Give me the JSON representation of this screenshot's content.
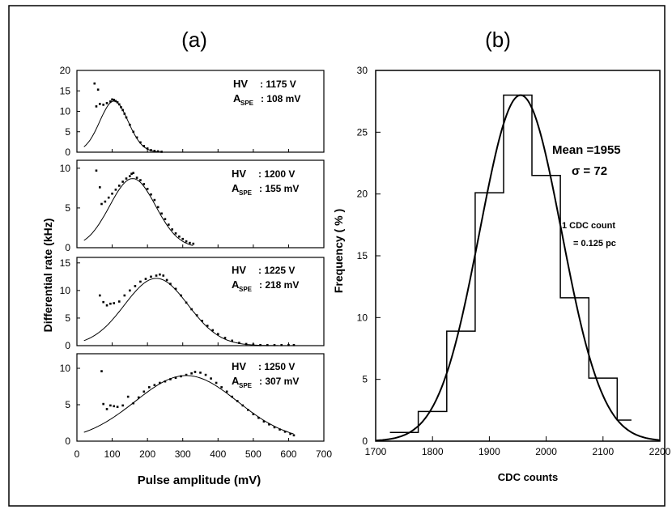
{
  "panel_a_title": "(a)",
  "panel_b_title": "(b)",
  "chart_data": [
    {
      "type": "scatter",
      "panel": "a1",
      "xlim": [
        0,
        700
      ],
      "ylim": [
        0,
        20
      ],
      "yticks": [
        0,
        5,
        10,
        15,
        20
      ],
      "annotation": {
        "hv_label": "HV",
        "hv_value": ": 1175  V",
        "a_label": "A",
        "a_sub": "SPE",
        "a_value": ":   108  mV"
      },
      "points": [
        [
          50,
          16.8
        ],
        [
          60,
          15.3
        ],
        [
          55,
          11.2
        ],
        [
          65,
          11.8
        ],
        [
          75,
          11.6
        ],
        [
          85,
          12.0
        ],
        [
          95,
          12.4
        ],
        [
          100,
          12.9
        ],
        [
          105,
          12.8
        ],
        [
          110,
          12.5
        ],
        [
          115,
          12.2
        ],
        [
          120,
          11.7
        ],
        [
          125,
          11.0
        ],
        [
          130,
          10.3
        ],
        [
          135,
          9.4
        ],
        [
          140,
          8.5
        ],
        [
          150,
          6.7
        ],
        [
          160,
          5.0
        ],
        [
          170,
          3.6
        ],
        [
          180,
          2.4
        ],
        [
          190,
          1.5
        ],
        [
          200,
          0.9
        ],
        [
          210,
          0.5
        ],
        [
          220,
          0.3
        ],
        [
          230,
          0.2
        ],
        [
          240,
          0.1
        ]
      ],
      "fit": {
        "mu": 105,
        "sigma": 40,
        "amp": 12.5,
        "x": [
          20,
          240
        ]
      }
    },
    {
      "type": "scatter",
      "panel": "a2",
      "xlim": [
        0,
        700
      ],
      "ylim": [
        0,
        11
      ],
      "yticks": [
        0,
        5,
        10
      ],
      "annotation": {
        "hv_label": "HV",
        "hv_value": ": 1200  V",
        "a_label": "A",
        "a_sub": "SPE",
        "a_value": ":   155  mV"
      },
      "points": [
        [
          55,
          9.7
        ],
        [
          65,
          7.6
        ],
        [
          70,
          5.5
        ],
        [
          80,
          5.8
        ],
        [
          90,
          6.3
        ],
        [
          100,
          6.8
        ],
        [
          110,
          7.3
        ],
        [
          120,
          7.8
        ],
        [
          130,
          8.3
        ],
        [
          140,
          8.7
        ],
        [
          150,
          9.0
        ],
        [
          155,
          9.3
        ],
        [
          160,
          9.4
        ],
        [
          170,
          8.8
        ],
        [
          180,
          8.5
        ],
        [
          190,
          8.0
        ],
        [
          200,
          7.4
        ],
        [
          210,
          6.7
        ],
        [
          220,
          6.0
        ],
        [
          230,
          5.1
        ],
        [
          240,
          4.3
        ],
        [
          250,
          3.6
        ],
        [
          260,
          2.9
        ],
        [
          270,
          2.3
        ],
        [
          280,
          1.8
        ],
        [
          290,
          1.4
        ],
        [
          300,
          1.1
        ],
        [
          310,
          0.8
        ],
        [
          320,
          0.6
        ],
        [
          330,
          0.5
        ]
      ],
      "fit": {
        "mu": 158,
        "sigma": 65,
        "amp": 8.7,
        "x": [
          20,
          330
        ]
      }
    },
    {
      "type": "scatter",
      "panel": "a3",
      "xlim": [
        0,
        700
      ],
      "ylim": [
        0,
        16
      ],
      "yticks": [
        0,
        5,
        10,
        15
      ],
      "annotation": {
        "hv_label": "HV",
        "hv_value": ": 1225  V",
        "a_label": "A",
        "a_sub": "SPE",
        "a_value": ":   218  mV"
      },
      "points": [
        [
          65,
          9.1
        ],
        [
          75,
          7.9
        ],
        [
          85,
          7.3
        ],
        [
          95,
          7.6
        ],
        [
          105,
          7.7
        ],
        [
          120,
          8.0
        ],
        [
          135,
          9.1
        ],
        [
          150,
          10.0
        ],
        [
          165,
          10.8
        ],
        [
          180,
          11.6
        ],
        [
          195,
          12.1
        ],
        [
          210,
          12.5
        ],
        [
          225,
          12.7
        ],
        [
          235,
          12.9
        ],
        [
          245,
          12.7
        ],
        [
          255,
          11.9
        ],
        [
          265,
          11.2
        ],
        [
          280,
          10.3
        ],
        [
          295,
          9.1
        ],
        [
          310,
          7.8
        ],
        [
          325,
          6.6
        ],
        [
          340,
          5.5
        ],
        [
          355,
          4.5
        ],
        [
          370,
          3.6
        ],
        [
          385,
          2.8
        ],
        [
          400,
          2.1
        ],
        [
          420,
          1.4
        ],
        [
          440,
          0.9
        ],
        [
          460,
          0.5
        ],
        [
          480,
          0.3
        ],
        [
          500,
          0.2
        ],
        [
          520,
          0.1
        ],
        [
          540,
          0.1
        ],
        [
          560,
          0.1
        ],
        [
          580,
          0.1
        ],
        [
          600,
          0.1
        ],
        [
          615,
          0.1
        ]
      ],
      "fit": {
        "mu": 225,
        "sigma": 90,
        "amp": 12.2,
        "x": [
          20,
          615
        ]
      }
    },
    {
      "type": "scatter",
      "panel": "a4",
      "xlim": [
        0,
        700
      ],
      "ylim": [
        0,
        12
      ],
      "yticks": [
        0,
        5,
        10
      ],
      "xticks": [
        0,
        100,
        200,
        300,
        400,
        500,
        600,
        700
      ],
      "xlabel": "Pulse amplitude (mV)",
      "annotation": {
        "hv_label": "HV",
        "hv_value": ": 1250  V",
        "a_label": "A",
        "a_sub": "SPE",
        "a_value": ":   307  mV"
      },
      "points": [
        [
          70,
          9.6
        ],
        [
          75,
          5.1
        ],
        [
          85,
          4.4
        ],
        [
          95,
          4.9
        ],
        [
          105,
          4.8
        ],
        [
          115,
          4.7
        ],
        [
          130,
          4.9
        ],
        [
          145,
          6.1
        ],
        [
          160,
          5.2
        ],
        [
          175,
          6.0
        ],
        [
          190,
          6.8
        ],
        [
          205,
          7.4
        ],
        [
          220,
          7.7
        ],
        [
          235,
          8.0
        ],
        [
          250,
          8.2
        ],
        [
          265,
          8.5
        ],
        [
          280,
          8.7
        ],
        [
          295,
          8.9
        ],
        [
          310,
          9.1
        ],
        [
          325,
          9.3
        ],
        [
          335,
          9.5
        ],
        [
          350,
          9.4
        ],
        [
          365,
          9.1
        ],
        [
          380,
          8.6
        ],
        [
          395,
          8.0
        ],
        [
          410,
          7.4
        ],
        [
          425,
          6.8
        ],
        [
          440,
          6.1
        ],
        [
          455,
          5.5
        ],
        [
          470,
          4.9
        ],
        [
          485,
          4.3
        ],
        [
          500,
          3.7
        ],
        [
          515,
          3.2
        ],
        [
          530,
          2.7
        ],
        [
          545,
          2.3
        ],
        [
          560,
          1.9
        ],
        [
          575,
          1.6
        ],
        [
          590,
          1.3
        ],
        [
          605,
          1.0
        ],
        [
          615,
          0.8
        ]
      ],
      "fit": {
        "mu": 310,
        "sigma": 145,
        "amp": 9.0,
        "x": [
          20,
          615
        ]
      }
    },
    {
      "type": "histogram",
      "panel": "b",
      "xlabel": "CDC  counts",
      "ylabel": "Frequency  ( % )",
      "xlim": [
        1700,
        2200
      ],
      "ylim": [
        0,
        30
      ],
      "xticks": [
        1700,
        1800,
        1900,
        2000,
        2100,
        2200
      ],
      "yticks": [
        0,
        5,
        10,
        15,
        20,
        25,
        30
      ],
      "bin_edges": [
        1725,
        1775,
        1825,
        1875,
        1925,
        1975,
        2025,
        2075,
        2125,
        2150
      ],
      "values": [
        0.7,
        2.4,
        8.9,
        20.1,
        28.0,
        21.5,
        11.6,
        5.1,
        1.7
      ],
      "fit": {
        "mean": 1955,
        "sigma": 72,
        "amp": 28.0
      },
      "mean_text": "Mean =1955",
      "sigma_text": "σ  =    72",
      "conversion_line1": "1  CDC count",
      "conversion_line2": "=  0.125 pc"
    }
  ],
  "shared_ylabel": "Differential  rate (kHz)"
}
